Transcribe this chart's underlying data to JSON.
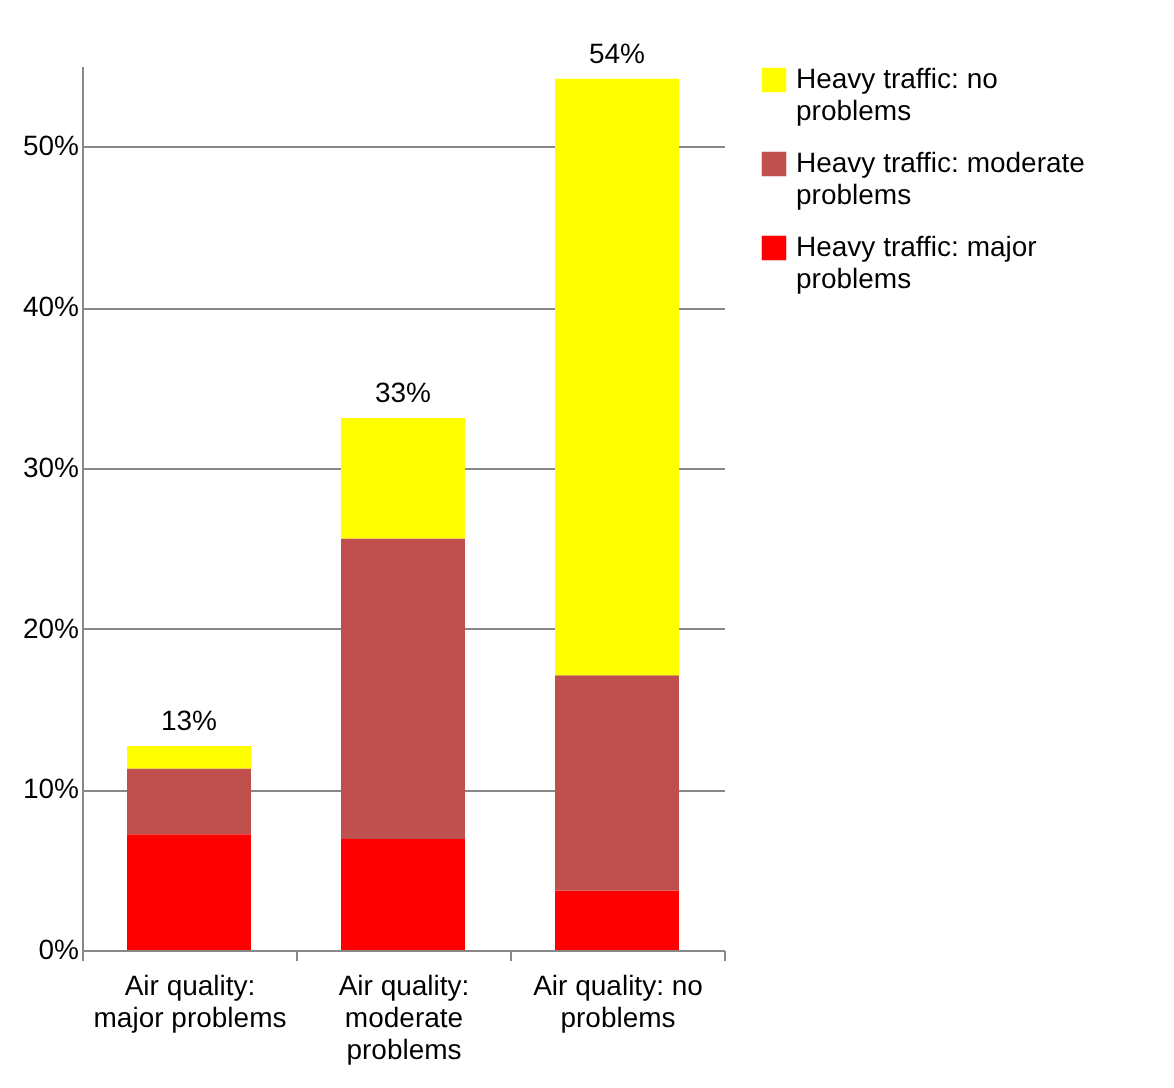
{
  "chart_data": {
    "type": "bar",
    "stacked": true,
    "categories": [
      "Air quality: major problems",
      "Air quality: moderate problems",
      "Air quality: no problems"
    ],
    "series": [
      {
        "name": "Heavy traffic: major problems",
        "color": "#ff0000",
        "values": [
          7.2,
          6.9,
          3.7
        ]
      },
      {
        "name": "Heavy traffic: moderate problems",
        "color": "#c0504d",
        "values": [
          4.1,
          18.7,
          13.4
        ]
      },
      {
        "name": "Heavy traffic: no problems",
        "color": "#ffff00",
        "values": [
          1.4,
          7.5,
          37.1
        ]
      }
    ],
    "totals": [
      "13%",
      "33%",
      "54%"
    ],
    "ylim": [
      0,
      55
    ],
    "yticks": [
      {
        "value": 0,
        "label": "0%"
      },
      {
        "value": 10,
        "label": "10%"
      },
      {
        "value": 20,
        "label": "20%"
      },
      {
        "value": 30,
        "label": "30%"
      },
      {
        "value": 40,
        "label": "40%"
      },
      {
        "value": 50,
        "label": "50%"
      }
    ],
    "grid": "y",
    "legend": "right"
  }
}
